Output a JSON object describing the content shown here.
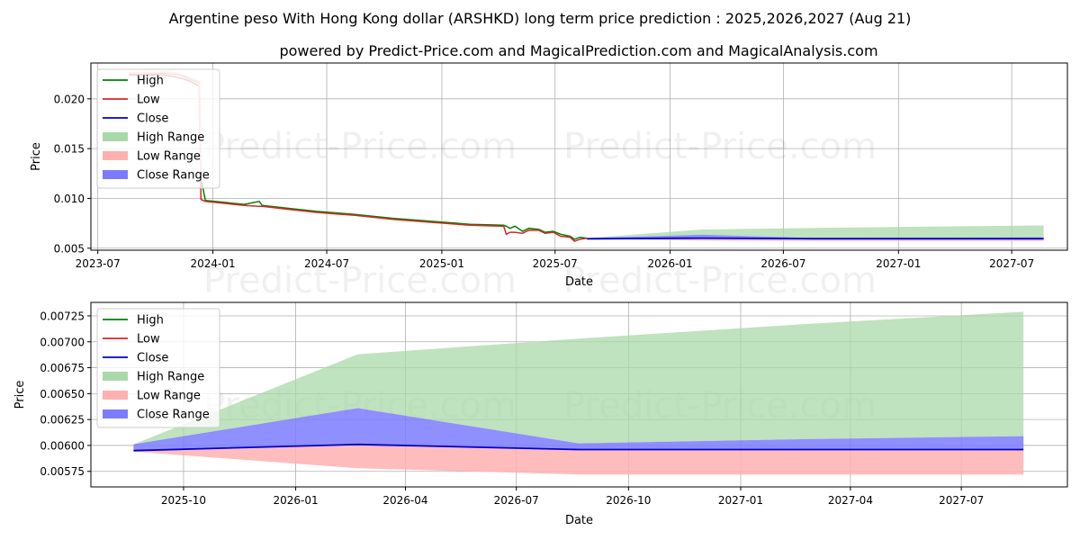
{
  "title": "Argentine peso With Hong Kong dollar (ARSHKD) long term price prediction : 2025,2026,2027 (Aug 21)",
  "subtitle": "powered by Predict-Price.com and MagicalPrediction.com and MagicalAnalysis.com",
  "watermark": "Predict-Price.com",
  "colors": {
    "high": "#008000",
    "low": "#d62728",
    "close": "#0000cc",
    "high_range": "#a9d8a9",
    "low_range": "#ffb0b0",
    "close_range": "#7b7bff",
    "grid": "#b0b0b0"
  },
  "legend": [
    "High",
    "Low",
    "Close",
    "High Range",
    "Low Range",
    "Close Range"
  ],
  "chart_data": [
    {
      "id": "top",
      "type": "line",
      "title": "",
      "xlabel": "Date",
      "ylabel": "Price",
      "xlim": [
        "2023-06-20",
        "2027-09-28"
      ],
      "ylim": [
        0.0048,
        0.0236
      ],
      "grid": true,
      "legend_position": "top-left",
      "x_ticks": [
        {
          "date": "2023-07-01",
          "label": "2023-07"
        },
        {
          "date": "2024-01-01",
          "label": "2024-01"
        },
        {
          "date": "2024-07-01",
          "label": "2024-07"
        },
        {
          "date": "2025-01-01",
          "label": "2025-01"
        },
        {
          "date": "2025-07-01",
          "label": "2025-07"
        },
        {
          "date": "2026-01-01",
          "label": "2026-01"
        },
        {
          "date": "2026-07-01",
          "label": "2026-07"
        },
        {
          "date": "2027-01-01",
          "label": "2027-01"
        },
        {
          "date": "2027-07-01",
          "label": "2027-07"
        }
      ],
      "y_ticks": [
        {
          "value": 0.005,
          "label": "0.005"
        },
        {
          "value": 0.01,
          "label": "0.010"
        },
        {
          "value": 0.015,
          "label": "0.015"
        },
        {
          "value": 0.02,
          "label": "0.020"
        }
      ],
      "history": [
        {
          "date": "2023-08-20",
          "high": 0.0225,
          "low": 0.0224
        },
        {
          "date": "2023-09-15",
          "high": 0.0225,
          "low": 0.0224
        },
        {
          "date": "2023-10-15",
          "high": 0.0226,
          "low": 0.0224
        },
        {
          "date": "2023-11-10",
          "high": 0.0224,
          "low": 0.0221
        },
        {
          "date": "2023-11-25",
          "high": 0.022,
          "low": 0.0218
        },
        {
          "date": "2023-12-10",
          "high": 0.0216,
          "low": 0.0213
        },
        {
          "date": "2023-12-13",
          "high": 0.012,
          "low": 0.0099
        },
        {
          "date": "2023-12-20",
          "high": 0.0098,
          "low": 0.0097
        },
        {
          "date": "2024-01-20",
          "high": 0.0096,
          "low": 0.0095
        },
        {
          "date": "2024-02-20",
          "high": 0.0094,
          "low": 0.0093
        },
        {
          "date": "2024-03-15",
          "high": 0.0097,
          "low": 0.0092
        },
        {
          "date": "2024-03-20",
          "high": 0.0093,
          "low": 0.0092
        },
        {
          "date": "2024-05-01",
          "high": 0.009,
          "low": 0.0089
        },
        {
          "date": "2024-06-15",
          "high": 0.0087,
          "low": 0.0086
        },
        {
          "date": "2024-08-15",
          "high": 0.0084,
          "low": 0.0083
        },
        {
          "date": "2024-10-15",
          "high": 0.008,
          "low": 0.0079
        },
        {
          "date": "2024-12-15",
          "high": 0.0077,
          "low": 0.0076
        },
        {
          "date": "2025-02-15",
          "high": 0.0074,
          "low": 0.0073
        },
        {
          "date": "2025-04-10",
          "high": 0.0073,
          "low": 0.0072
        },
        {
          "date": "2025-04-14",
          "high": 0.0072,
          "low": 0.0064
        },
        {
          "date": "2025-04-20",
          "high": 0.007,
          "low": 0.0066
        },
        {
          "date": "2025-04-28",
          "high": 0.0072,
          "low": 0.0066
        },
        {
          "date": "2025-05-10",
          "high": 0.0067,
          "low": 0.0065
        },
        {
          "date": "2025-05-20",
          "high": 0.007,
          "low": 0.0068
        },
        {
          "date": "2025-06-05",
          "high": 0.0069,
          "low": 0.0068
        },
        {
          "date": "2025-06-15",
          "high": 0.0066,
          "low": 0.0065
        },
        {
          "date": "2025-06-28",
          "high": 0.0067,
          "low": 0.0066
        },
        {
          "date": "2025-07-10",
          "high": 0.0064,
          "low": 0.0062
        },
        {
          "date": "2025-07-25",
          "high": 0.0062,
          "low": 0.0061
        },
        {
          "date": "2025-08-01",
          "high": 0.0059,
          "low": 0.0057
        },
        {
          "date": "2025-08-10",
          "high": 0.0061,
          "low": 0.0059
        },
        {
          "date": "2025-08-21",
          "high": 0.006,
          "low": 0.006
        }
      ],
      "forecast": [
        {
          "date": "2025-08-21",
          "close": 0.00595,
          "high_upper": 0.00601,
          "high_lower": 0.006,
          "low_upper": 0.00596,
          "low_lower": 0.00594,
          "close_upper": 0.00601,
          "close_lower": 0.00595
        },
        {
          "date": "2026-02-21",
          "close": 0.00601,
          "high_upper": 0.00688,
          "high_lower": 0.00636,
          "low_upper": 0.006,
          "low_lower": 0.00578,
          "close_upper": 0.00636,
          "close_lower": 0.00601
        },
        {
          "date": "2026-08-21",
          "close": 0.00596,
          "high_upper": 0.00703,
          "high_lower": 0.00602,
          "low_upper": 0.00596,
          "low_lower": 0.00572,
          "close_upper": 0.00602,
          "close_lower": 0.00596
        },
        {
          "date": "2027-02-21",
          "close": 0.00596,
          "high_upper": 0.00717,
          "high_lower": 0.00606,
          "low_upper": 0.00596,
          "low_lower": 0.00572,
          "close_upper": 0.00606,
          "close_lower": 0.00596
        },
        {
          "date": "2027-08-21",
          "close": 0.00596,
          "high_upper": 0.00729,
          "high_lower": 0.00609,
          "low_upper": 0.00596,
          "low_lower": 0.00572,
          "close_upper": 0.00609,
          "close_lower": 0.00596
        }
      ]
    },
    {
      "id": "bottom",
      "type": "line",
      "title": "",
      "xlabel": "Date",
      "ylabel": "Price",
      "xlim": [
        "2025-07-17",
        "2027-09-26"
      ],
      "ylim": [
        0.0056,
        0.00738
      ],
      "grid": true,
      "legend_position": "top-left",
      "x_ticks": [
        {
          "date": "2025-10-01",
          "label": "2025-10"
        },
        {
          "date": "2026-01-01",
          "label": "2026-01"
        },
        {
          "date": "2026-04-01",
          "label": "2026-04"
        },
        {
          "date": "2026-07-01",
          "label": "2026-07"
        },
        {
          "date": "2026-10-01",
          "label": "2026-10"
        },
        {
          "date": "2027-01-01",
          "label": "2027-01"
        },
        {
          "date": "2027-04-01",
          "label": "2027-04"
        },
        {
          "date": "2027-07-01",
          "label": "2027-07"
        }
      ],
      "y_ticks": [
        {
          "value": 0.00575,
          "label": "0.00575"
        },
        {
          "value": 0.006,
          "label": "0.00600"
        },
        {
          "value": 0.00625,
          "label": "0.00625"
        },
        {
          "value": 0.0065,
          "label": "0.00650"
        },
        {
          "value": 0.00675,
          "label": "0.00675"
        },
        {
          "value": 0.007,
          "label": "0.00700"
        },
        {
          "value": 0.00725,
          "label": "0.00725"
        }
      ],
      "history": [],
      "forecast": [
        {
          "date": "2025-08-21",
          "close": 0.00595,
          "high_upper": 0.00601,
          "high_lower": 0.006,
          "low_upper": 0.00596,
          "low_lower": 0.00594,
          "close_upper": 0.00601,
          "close_lower": 0.00595
        },
        {
          "date": "2026-02-21",
          "close": 0.00601,
          "high_upper": 0.00688,
          "high_lower": 0.00636,
          "low_upper": 0.006,
          "low_lower": 0.00578,
          "close_upper": 0.00636,
          "close_lower": 0.00601
        },
        {
          "date": "2026-08-21",
          "close": 0.00596,
          "high_upper": 0.00703,
          "high_lower": 0.00602,
          "low_upper": 0.00596,
          "low_lower": 0.00572,
          "close_upper": 0.00602,
          "close_lower": 0.00596
        },
        {
          "date": "2027-02-21",
          "close": 0.00596,
          "high_upper": 0.00717,
          "high_lower": 0.00606,
          "low_upper": 0.00596,
          "low_lower": 0.00572,
          "close_upper": 0.00606,
          "close_lower": 0.00596
        },
        {
          "date": "2027-08-21",
          "close": 0.00596,
          "high_upper": 0.00729,
          "high_lower": 0.00609,
          "low_upper": 0.00596,
          "low_lower": 0.00572,
          "close_upper": 0.00609,
          "close_lower": 0.00596
        }
      ]
    }
  ]
}
